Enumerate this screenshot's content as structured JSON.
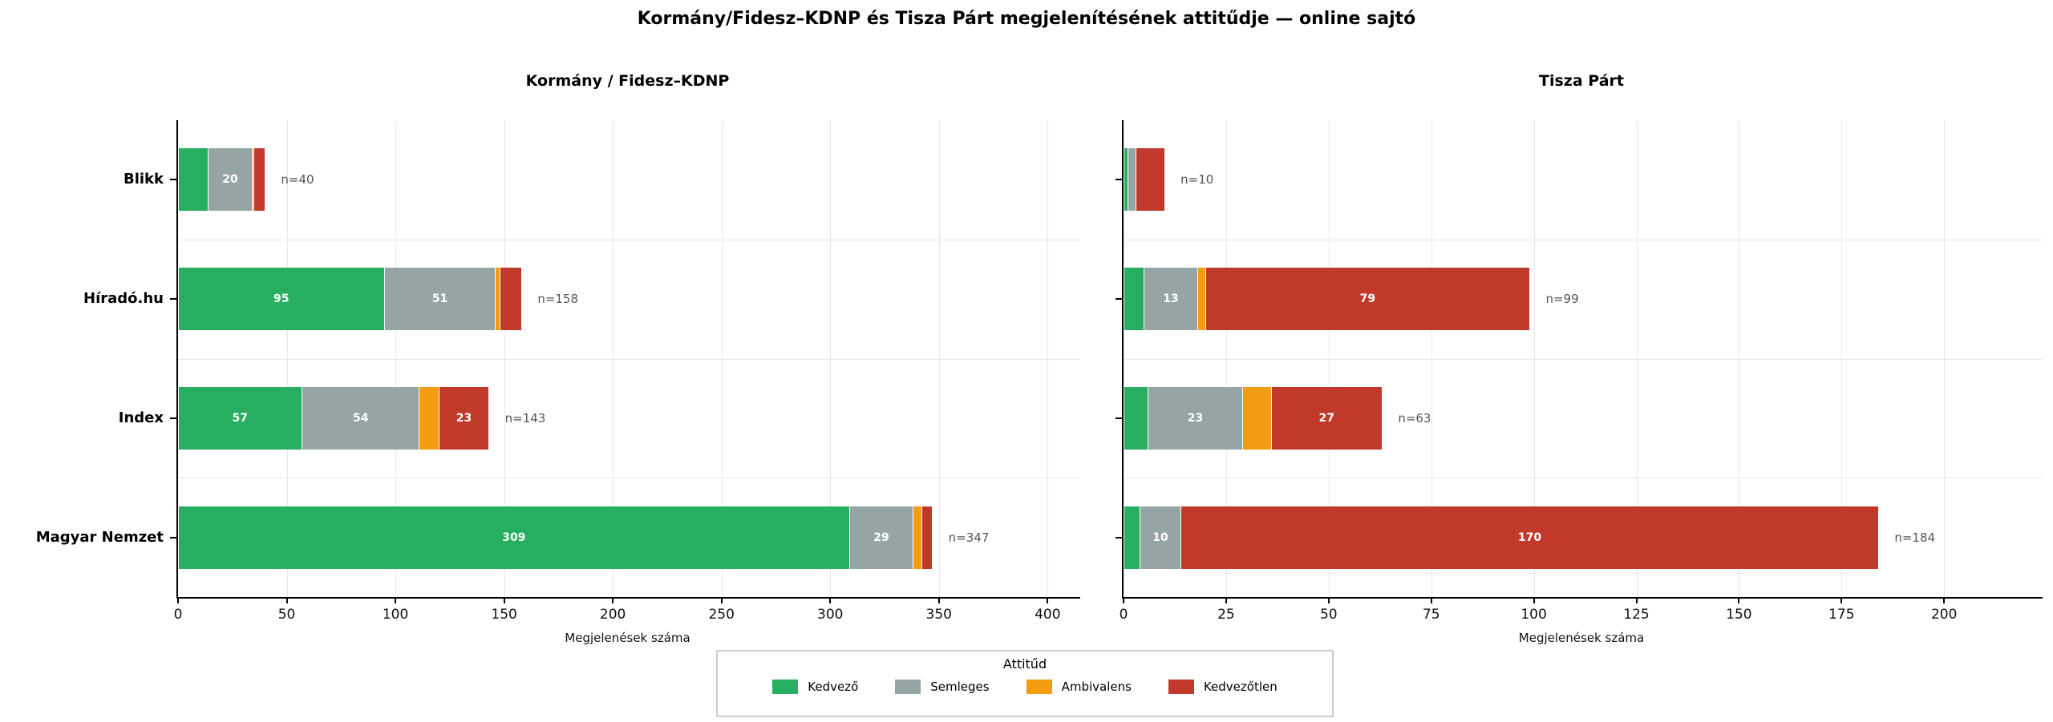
{
  "title": "Kormány/Fidesz–KDNP és Tisza Párt megjelenítésének attitűdje — online sajtó",
  "colors": {
    "kedvezo": "#27ae60",
    "semleges": "#95a5a6",
    "ambivalens": "#f39c12",
    "kedvezotlen": "#c0392b",
    "grid": "#e7e7e7",
    "axis": "#000000",
    "n_label": "#555555"
  },
  "legend": {
    "title": "Attitűd",
    "items": [
      {
        "label": "Kedvező",
        "color_key": "kedvezo"
      },
      {
        "label": "Semleges",
        "color_key": "semleges"
      },
      {
        "label": "Ambivalens",
        "color_key": "ambivalens"
      },
      {
        "label": "Kedvezőtlen",
        "color_key": "kedvezotlen"
      }
    ]
  },
  "chart_data": [
    {
      "type": "bar",
      "orientation": "horizontal",
      "stacked": true,
      "grid": "on",
      "legend_position": "bottom-center",
      "title": "Kormány / Fidesz–KDNP",
      "xlabel": "Megjelenések száma",
      "categories": [
        "Blikk",
        "Híradó.hu",
        "Index",
        "Magyar Nemzet"
      ],
      "series": [
        {
          "name": "Kedvező",
          "values": [
            14,
            95,
            57,
            309
          ]
        },
        {
          "name": "Semleges",
          "values": [
            20,
            51,
            54,
            29
          ]
        },
        {
          "name": "Ambivalens",
          "values": [
            1,
            2,
            9,
            4
          ]
        },
        {
          "name": "Kedvezőtlen",
          "values": [
            5,
            10,
            23,
            5
          ]
        }
      ],
      "totals": [
        40,
        158,
        143,
        347
      ],
      "total_labels": [
        "n=40",
        "n=158",
        "n=143",
        "n=347"
      ],
      "xticks": [
        0,
        50,
        100,
        150,
        200,
        250,
        300,
        350,
        400
      ],
      "xlim": [
        0,
        415
      ],
      "value_label_min": 17
    },
    {
      "type": "bar",
      "orientation": "horizontal",
      "stacked": true,
      "grid": "on",
      "legend_position": "bottom-center",
      "title": "Tisza Párt",
      "xlabel": "Megjelenések száma",
      "categories": [
        "Blikk",
        "Híradó.hu",
        "Index",
        "Magyar Nemzet"
      ],
      "series": [
        {
          "name": "Kedvező",
          "values": [
            1,
            5,
            6,
            4
          ]
        },
        {
          "name": "Semleges",
          "values": [
            2,
            13,
            23,
            10
          ]
        },
        {
          "name": "Ambivalens",
          "values": [
            0,
            2,
            7,
            0
          ]
        },
        {
          "name": "Kedvezőtlen",
          "values": [
            7,
            79,
            27,
            170
          ]
        }
      ],
      "totals": [
        10,
        99,
        63,
        184
      ],
      "total_labels": [
        "n=10",
        "n=99",
        "n=63",
        "n=184"
      ],
      "xticks": [
        0,
        25,
        50,
        75,
        100,
        125,
        150,
        175,
        200
      ],
      "xlim": [
        0,
        224
      ],
      "value_label_min": 9
    }
  ]
}
